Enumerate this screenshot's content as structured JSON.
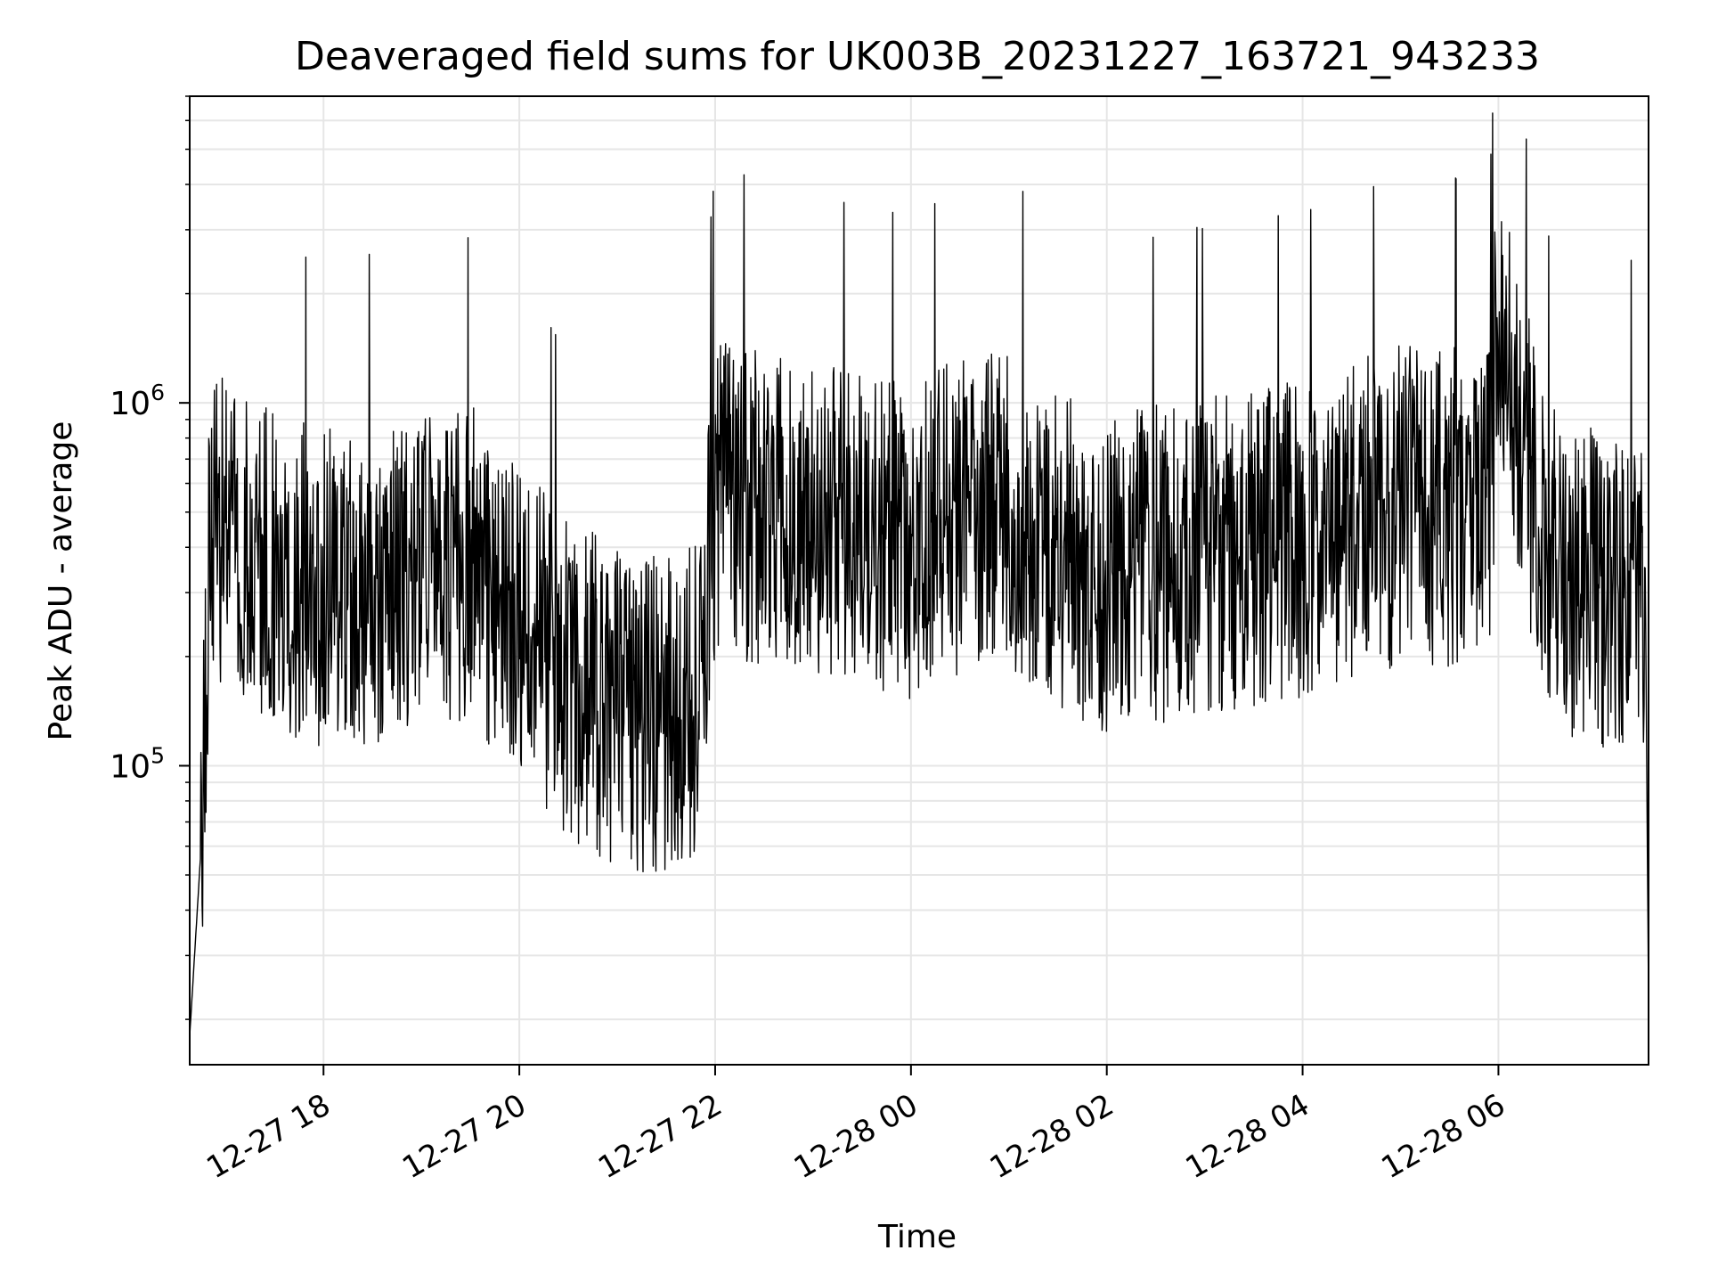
{
  "chart_data": {
    "type": "line",
    "title": "Deaveraged field sums for UK003B_20231227_163721_943233",
    "xlabel": "Time",
    "ylabel": "Peak ADU - average",
    "yscale": "log",
    "xlim": [
      "2023-12-27 16:38",
      "2023-12-28 07:32"
    ],
    "ylim": [
      15000,
      7000000
    ],
    "grid": true,
    "x_ticks": [
      "2023-12-27 18:00",
      "2023-12-27 20:00",
      "2023-12-27 22:00",
      "2023-12-28 00:00",
      "2023-12-28 02:00",
      "2023-12-28 04:00",
      "2023-12-28 06:00"
    ],
    "x_tick_labels": [
      "12-27 18",
      "12-27 20",
      "12-27 22",
      "12-28 00",
      "12-28 02",
      "12-28 04",
      "12-28 06"
    ],
    "y_ticks": [
      100000,
      1000000
    ],
    "y_tick_labels": [
      {
        "base": "10",
        "exp": "5"
      },
      {
        "base": "10",
        "exp": "6"
      }
    ],
    "line_color": "#000000",
    "series": [
      {
        "x": [
          "2023-12-27 16:38",
          "2023-12-27 16:45",
          "2023-12-27 16:50",
          "2023-12-27 17:00",
          "2023-12-27 17:20",
          "2023-12-27 17:40",
          "2023-12-27 18:00",
          "2023-12-27 18:30",
          "2023-12-27 19:00",
          "2023-12-27 19:30",
          "2023-12-27 20:00",
          "2023-12-27 20:30",
          "2023-12-27 21:00",
          "2023-12-27 21:30",
          "2023-12-27 21:50",
          "2023-12-27 22:00",
          "2023-12-27 22:30",
          "2023-12-27 23:00",
          "2023-12-27 23:30",
          "2023-12-28 00:00",
          "2023-12-28 00:30",
          "2023-12-28 01:00",
          "2023-12-28 01:30",
          "2023-12-28 02:00",
          "2023-12-28 02:30",
          "2023-12-28 03:00",
          "2023-12-28 03:30",
          "2023-12-28 04:00",
          "2023-12-28 04:30",
          "2023-12-28 05:00",
          "2023-12-28 05:30",
          "2023-12-28 05:55",
          "2023-12-28 06:00",
          "2023-12-28 06:10",
          "2023-12-28 06:30",
          "2023-12-28 07:00",
          "2023-12-28 07:20",
          "2023-12-28 07:30",
          "2023-12-28 07:32"
        ],
        "y": [
          18000,
          60000,
          500000,
          550000,
          450000,
          420000,
          380000,
          400000,
          420000,
          450000,
          320000,
          220000,
          180000,
          170000,
          200000,
          700000,
          650000,
          600000,
          550000,
          520000,
          600000,
          650000,
          500000,
          420000,
          450000,
          480000,
          500000,
          520000,
          600000,
          650000,
          650000,
          700000,
          2500000,
          1200000,
          450000,
          380000,
          400000,
          350000,
          22000
        ]
      }
    ]
  }
}
